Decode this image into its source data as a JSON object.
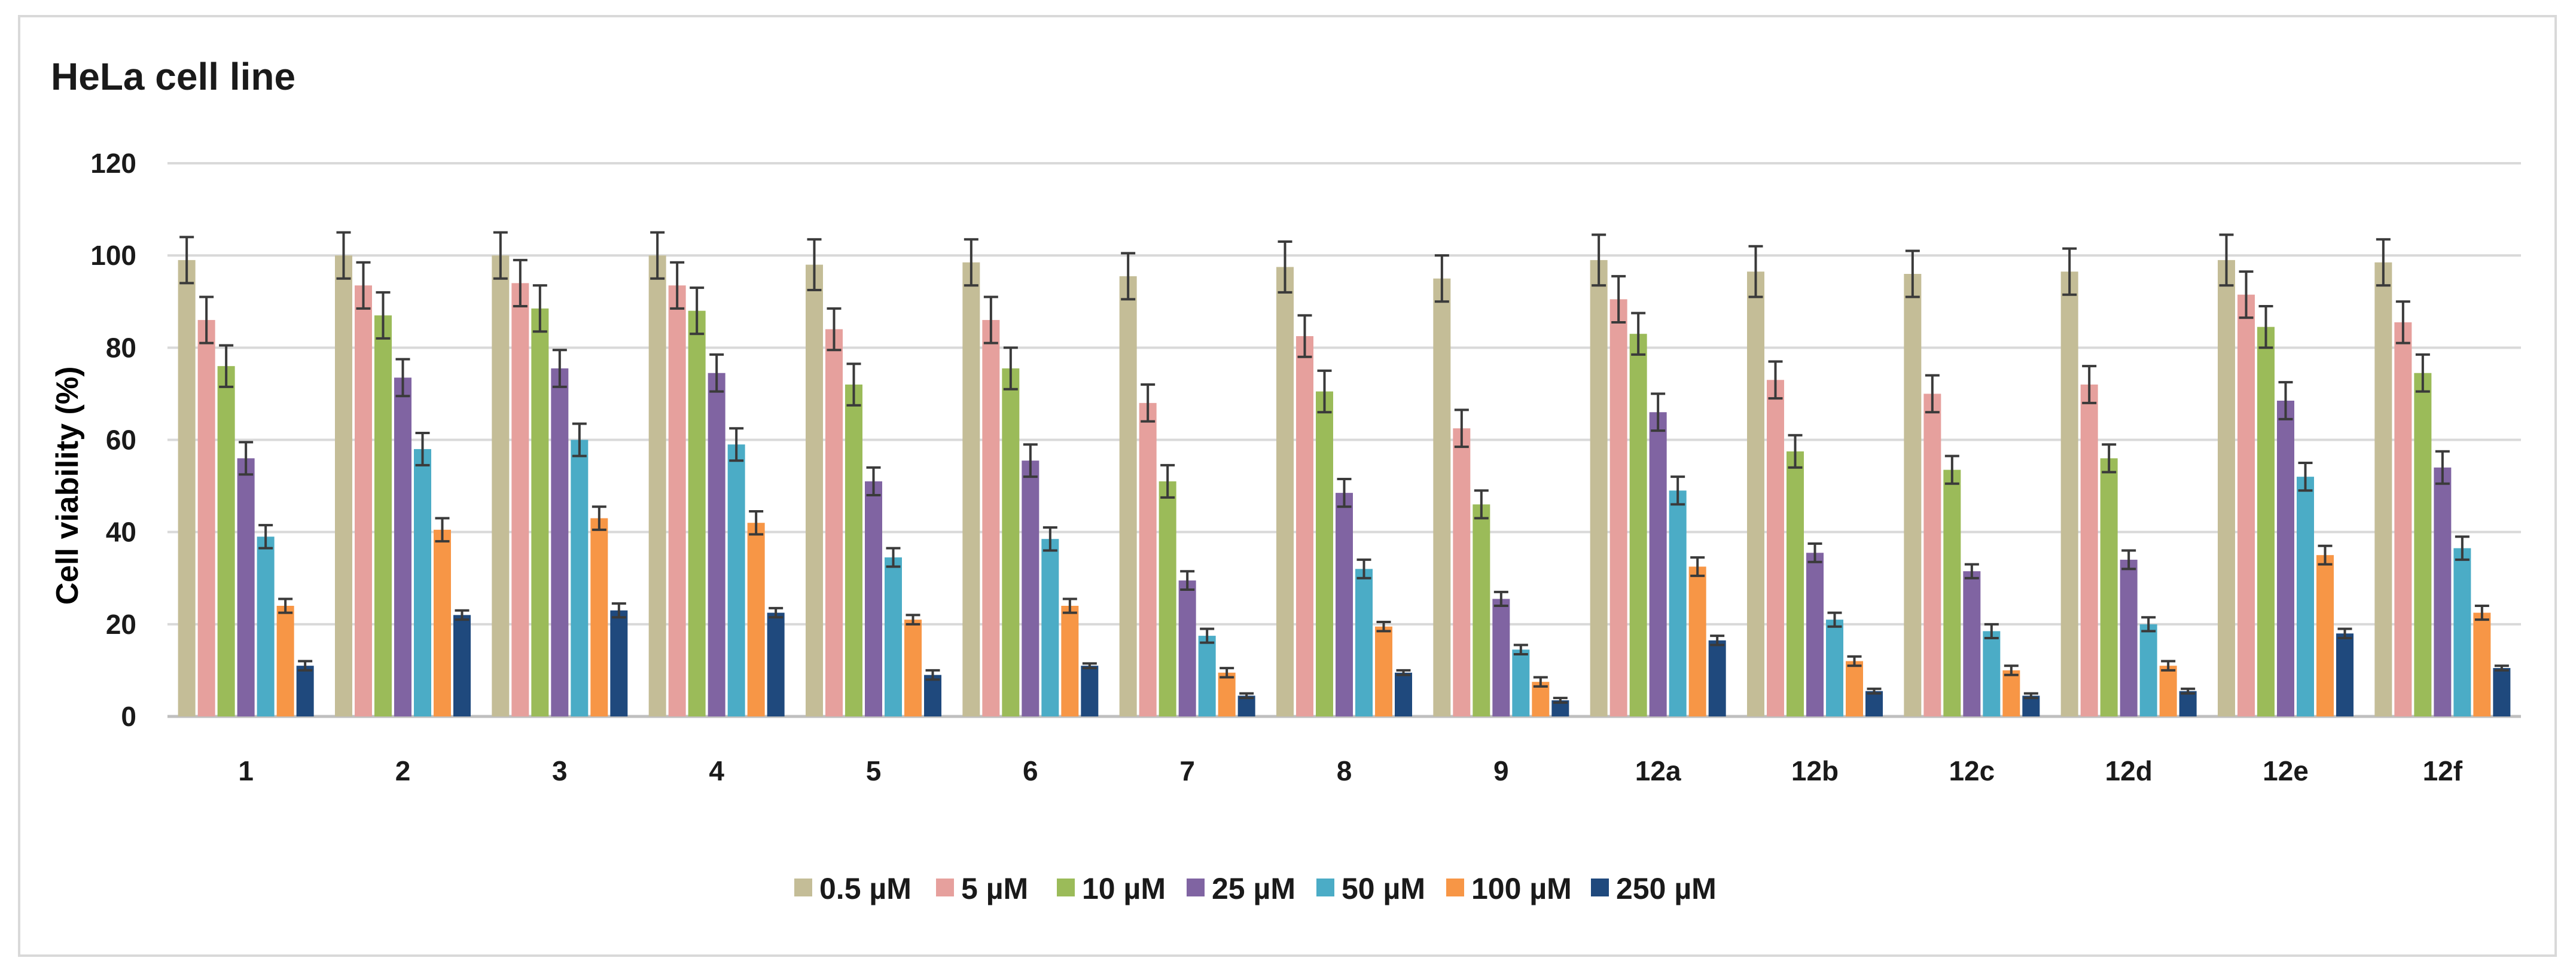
{
  "chart_data": {
    "type": "bar",
    "title": "HeLa cell line",
    "xlabel": "",
    "ylabel": "Cell viability (%)",
    "ylim": [
      0,
      120
    ],
    "yticks": [
      0,
      20,
      40,
      60,
      80,
      100,
      120
    ],
    "grid": "horizontal",
    "legend_position": "bottom",
    "error_bars": true,
    "categories": [
      "1",
      "2",
      "3",
      "4",
      "5",
      "6",
      "7",
      "8",
      "9",
      "12a",
      "12b",
      "12c",
      "12d",
      "12e",
      "12f"
    ],
    "series": [
      {
        "name": "0.5 µM",
        "color": "#c4bd97",
        "values": [
          99,
          100,
          100,
          100,
          98,
          98.5,
          95.5,
          97.5,
          95,
          99,
          96.5,
          96,
          96.5,
          99,
          98.5
        ],
        "errors": [
          5,
          5,
          5,
          5,
          5.5,
          5,
          5,
          5.5,
          5,
          5.5,
          5.5,
          5,
          5,
          5.5,
          5
        ]
      },
      {
        "name": "5 µM",
        "color": "#e6a09d",
        "values": [
          86,
          93.5,
          94,
          93.5,
          84,
          86,
          68,
          82.5,
          62.5,
          90.5,
          73,
          70,
          72,
          91.5,
          85.5
        ],
        "errors": [
          5,
          5,
          5,
          5,
          4.5,
          5,
          4,
          4.5,
          4,
          5,
          4,
          4,
          4,
          5,
          4.5
        ]
      },
      {
        "name": "10 µM",
        "color": "#9bbb59",
        "values": [
          76,
          87,
          88.5,
          88,
          72,
          75.5,
          51,
          70.5,
          46,
          83,
          57.5,
          53.5,
          56,
          84.5,
          74.5
        ],
        "errors": [
          4.5,
          5,
          5,
          5,
          4.5,
          4.5,
          3.5,
          4.5,
          3,
          4.5,
          3.5,
          3,
          3,
          4.5,
          4
        ]
      },
      {
        "name": "25 µM",
        "color": "#8064a2",
        "values": [
          56,
          73.5,
          75.5,
          74.5,
          51,
          55.5,
          29.5,
          48.5,
          25.5,
          66,
          35.5,
          31.5,
          34,
          68.5,
          54
        ],
        "errors": [
          3.5,
          4,
          4,
          4,
          3,
          3.5,
          2,
          3,
          1.5,
          4,
          2,
          1.5,
          2,
          4,
          3.5
        ]
      },
      {
        "name": "50 µM",
        "color": "#4bacc6",
        "values": [
          39,
          58,
          60,
          59,
          34.5,
          38.5,
          17.5,
          32,
          14.5,
          49,
          21,
          18.5,
          20,
          52,
          36.5
        ],
        "errors": [
          2.5,
          3.5,
          3.5,
          3.5,
          2,
          2.5,
          1.5,
          2,
          1,
          3,
          1.5,
          1.5,
          1.5,
          3,
          2.5
        ]
      },
      {
        "name": "100 µM",
        "color": "#f79646",
        "values": [
          24,
          40.5,
          43,
          42,
          21,
          24,
          9.5,
          19.5,
          7.5,
          32.5,
          12,
          10,
          11,
          35,
          22.5
        ],
        "errors": [
          1.5,
          2.5,
          2.5,
          2.5,
          1,
          1.5,
          1,
          1,
          1,
          2,
          1,
          1,
          1,
          2,
          1.5
        ]
      },
      {
        "name": "250 µM",
        "color": "#1f497d",
        "values": [
          11,
          22,
          23,
          22.5,
          9,
          11,
          4.5,
          9.5,
          3.5,
          16.5,
          5.5,
          4.5,
          5.5,
          18,
          10.5
        ],
        "errors": [
          1,
          1,
          1.5,
          1,
          1,
          0.5,
          0.5,
          0.5,
          0.5,
          1,
          0.5,
          0.5,
          0.5,
          1,
          0.5
        ]
      }
    ]
  }
}
